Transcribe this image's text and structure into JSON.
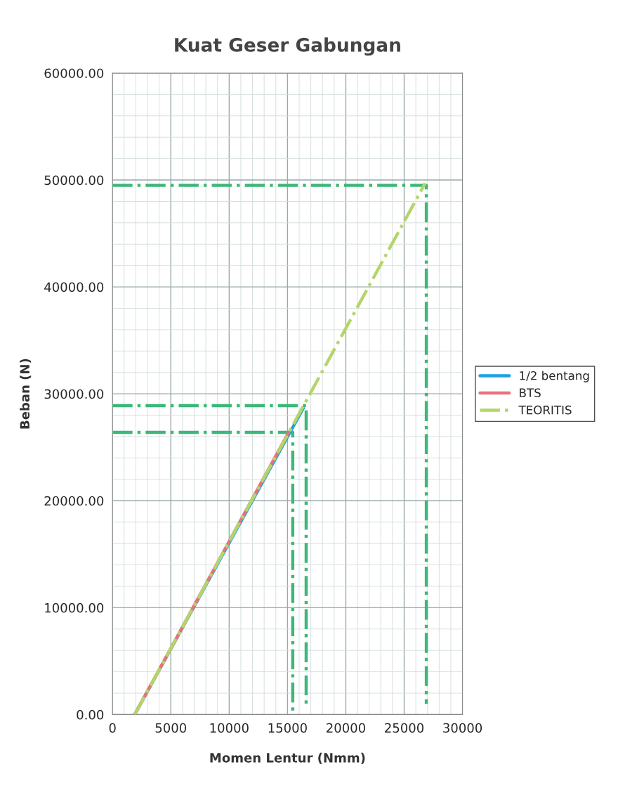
{
  "chart_data": {
    "type": "line",
    "title": "Kuat Geser Gabungan",
    "xlabel": "Momen Lentur (Nmm)",
    "ylabel": "Beban (N)",
    "xlim": [
      0,
      30000
    ],
    "xticks": [
      0,
      5000,
      10000,
      15000,
      20000,
      25000,
      30000
    ],
    "ylim": [
      0,
      60000
    ],
    "yticks": [
      {
        "value": 0,
        "label": "0.00"
      },
      {
        "value": 10000,
        "label": "10000.00"
      },
      {
        "value": 20000,
        "label": "20000.00"
      },
      {
        "value": 30000,
        "label": "30000.00"
      },
      {
        "value": 40000,
        "label": "40000.00"
      },
      {
        "value": 50000,
        "label": "50000.00"
      },
      {
        "value": 60000,
        "label": "60000.00"
      }
    ],
    "grid": true,
    "legend": "right",
    "marker": "none",
    "series": [
      {
        "name": "1/2 bentang",
        "color": "#1ba1e2",
        "line_style": "solid",
        "x": [
          1900,
          16350
        ],
        "values": [
          0,
          28650
        ]
      },
      {
        "name": "BTS",
        "color": "#e8737a",
        "line_style": "solid",
        "x": [
          1900,
          15100
        ],
        "values": [
          0,
          26400
        ]
      },
      {
        "name": "TEORITIS",
        "color": "#b5d56a",
        "line_style": "dashdot",
        "x": [
          1900,
          26800
        ],
        "values": [
          0,
          49700
        ]
      },
      {
        "color": "#3cb878",
        "line_style": "dashdot",
        "x": [
          0,
          15450,
          15450
        ],
        "values": [
          26400,
          26400,
          0
        ]
      },
      {
        "color": "#3cb878",
        "line_style": "dashdot",
        "x": [
          0,
          16600,
          16600
        ],
        "values": [
          28900,
          28900,
          1000
        ]
      },
      {
        "color": "#3cb878",
        "line_style": "dashdot",
        "x": [
          0,
          26900,
          26900
        ],
        "values": [
          49500,
          49500,
          1000
        ]
      }
    ]
  }
}
